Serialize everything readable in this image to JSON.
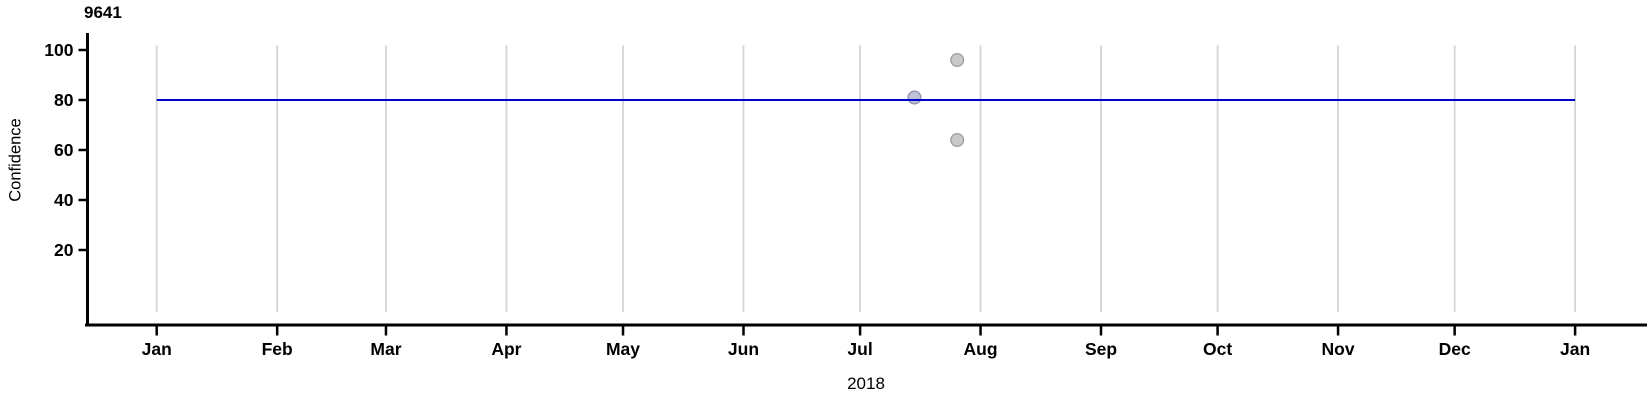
{
  "chart_data": {
    "type": "scatter",
    "title": "9641",
    "xlabel": "2018",
    "ylabel": "Confidence",
    "x_axis": {
      "scale": "time",
      "start": "2018-01-01",
      "end": "2019-01-01",
      "tick_unit": "month",
      "tick_labels": [
        "Jan",
        "Feb",
        "Mar",
        "Apr",
        "May",
        "Jun",
        "Jul",
        "Aug",
        "Sep",
        "Oct",
        "Nov",
        "Dec",
        "Jan"
      ]
    },
    "y_axis": {
      "label": "Confidence",
      "tick_values": [
        100,
        80,
        60,
        40,
        20
      ],
      "range_shown": [
        -5,
        106
      ]
    },
    "grid": {
      "vertical": true,
      "horizontal": false,
      "color": "#d4d4d4"
    },
    "reference_line": {
      "y": 80,
      "start": "2018-01-01",
      "end": "2019-01-01",
      "color": "#0000cd"
    },
    "points": [
      {
        "date": "2018-07-15",
        "value": 81,
        "fill": "#c0c3d8",
        "stroke": "#8f93b3"
      },
      {
        "date": "2018-07-26",
        "value": 96,
        "fill": "#c9c9c9",
        "stroke": "#a0a0a0"
      },
      {
        "date": "2018-07-26",
        "value": 64,
        "fill": "#c9c9c9",
        "stroke": "#a0a0a0"
      }
    ],
    "colors": {
      "axis": "#000000",
      "tick": "#000000",
      "text": "#000000",
      "background": "#ffffff"
    }
  }
}
